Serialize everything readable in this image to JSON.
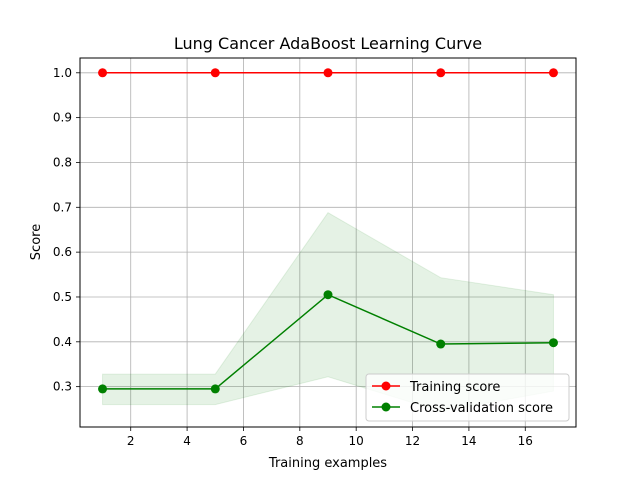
{
  "chart_data": {
    "type": "line",
    "title": "Lung Cancer AdaBoost Learning Curve",
    "xlabel": "Training examples",
    "ylabel": "Score",
    "xlim": [
      0.2,
      17.8
    ],
    "ylim": [
      0.21,
      1.033
    ],
    "xticks": [
      2,
      4,
      6,
      8,
      10,
      12,
      14,
      16
    ],
    "yticks": [
      0.3,
      0.4,
      0.5,
      0.6,
      0.7,
      0.8,
      0.9,
      1.0
    ],
    "grid": true,
    "legend_position": "lower-right",
    "x": [
      1,
      5,
      9,
      13,
      17
    ],
    "series": [
      {
        "name": "Training score",
        "color": "#ff0000",
        "values": [
          1.0,
          1.0,
          1.0,
          1.0,
          1.0
        ],
        "band_lower": [
          1.0,
          1.0,
          1.0,
          1.0,
          1.0
        ],
        "band_upper": [
          1.0,
          1.0,
          1.0,
          1.0,
          1.0
        ],
        "band_color": "#ff0000"
      },
      {
        "name": "Cross-validation score",
        "color": "#008000",
        "values": [
          0.295,
          0.295,
          0.505,
          0.395,
          0.398
        ],
        "band_lower": [
          0.26,
          0.26,
          0.322,
          0.245,
          0.29
        ],
        "band_upper": [
          0.328,
          0.328,
          0.688,
          0.543,
          0.505
        ],
        "band_color": "#008000"
      }
    ]
  }
}
